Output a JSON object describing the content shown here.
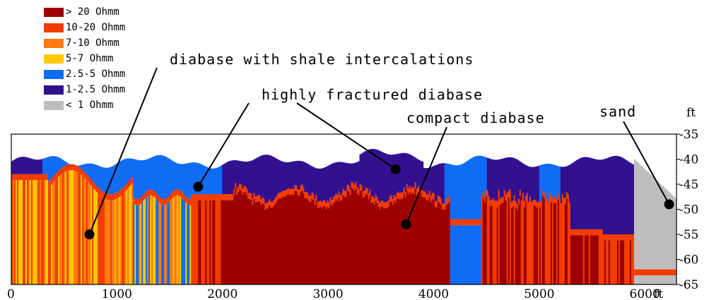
{
  "chart_data": {
    "type": "heatmap",
    "title": "",
    "xlabel": "",
    "ylabel": "",
    "x_unit": "ft",
    "y_unit": "ft",
    "xlim": [
      0,
      6300
    ],
    "ylim": [
      -65,
      -35
    ],
    "x_ticks": [
      "0",
      "1000",
      "2000",
      "3000",
      "4000",
      "5000",
      "6000"
    ],
    "y_ticks": [
      "-35",
      "-40",
      "-45",
      "-50",
      "-55",
      "-60",
      "-65"
    ],
    "legend": [
      {
        "label": "> 20 Ohmm",
        "color": "#9c0000"
      },
      {
        "label": "10-20 Ohmm",
        "color": "#f23c00"
      },
      {
        "label": "7-10 Ohmm",
        "color": "#ff7a10"
      },
      {
        "label": "5-7 Ohmm",
        "color": "#ffc800"
      },
      {
        "label": "2.5-5 Ohmm",
        "color": "#0f6cf5"
      },
      {
        "label": "1-2.5 Ohmm",
        "color": "#33108f"
      },
      {
        "label": "< 1 Ohmm",
        "color": "#bdbdbd"
      }
    ],
    "annotations": [
      {
        "text": "diabase with shale intercalations",
        "point": {
          "x": 740,
          "y": -55
        }
      },
      {
        "text": "highly fractured diabase",
        "point": {
          "x": 1770,
          "y": -45.5
        }
      },
      {
        "text": "highly fractured diabase",
        "point": {
          "x": 3640,
          "y": -42
        }
      },
      {
        "text": "compact diabase",
        "point": {
          "x": 3740,
          "y": -53
        }
      },
      {
        "text": "sand",
        "point": {
          "x": 6230,
          "y": -49
        }
      }
    ]
  }
}
